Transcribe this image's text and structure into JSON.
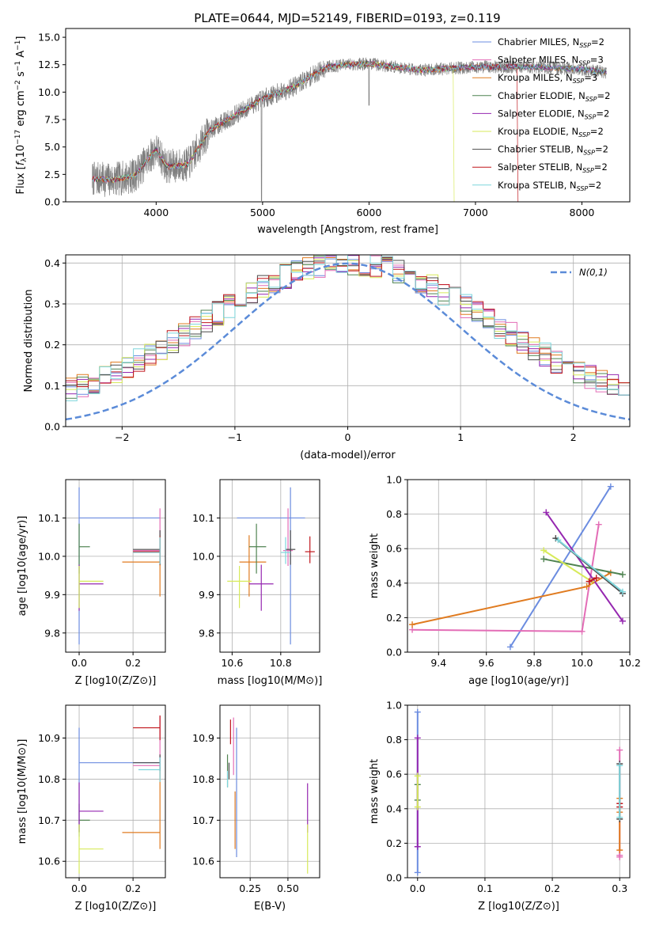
{
  "figure": {
    "title": "PLATE=0644, MJD=52149, FIBERID=0193, z=0.119"
  },
  "models": [
    {
      "name": "Chabrier MILES",
      "nssp": "2",
      "color": "#6b8ce0"
    },
    {
      "name": "Salpeter MILES",
      "nssp": "3",
      "color": "#e36db6"
    },
    {
      "name": "Kroupa MILES",
      "nssp": "3",
      "color": "#e07b20"
    },
    {
      "name": "Chabrier ELODIE",
      "nssp": "2",
      "color": "#4f8350"
    },
    {
      "name": "Salpeter ELODIE",
      "nssp": "2",
      "color": "#9527b0"
    },
    {
      "name": "Kroupa ELODIE",
      "nssp": "2",
      "color": "#d7ea5a"
    },
    {
      "name": "Chabrier STELIB",
      "nssp": "2",
      "color": "#4a4a4a"
    },
    {
      "name": "Salpeter STELIB",
      "nssp": "2",
      "color": "#c0161c"
    },
    {
      "name": "Kroupa STELIB",
      "nssp": "2",
      "color": "#7ed6dc"
    }
  ],
  "chart_data": [
    {
      "id": "spectrum",
      "type": "line",
      "xlabel": "wavelength [Angstrom, rest frame]",
      "ylabel": "Flux [f_λ 10^-17 erg cm^-2 s^-1 A^-1]",
      "xlim": [
        3150,
        8450
      ],
      "ylim": [
        0,
        15.8
      ],
      "xticks": [
        4000,
        5000,
        6000,
        7000,
        8000
      ],
      "yticks": [
        0.0,
        2.5,
        5.0,
        7.5,
        10.0,
        12.5,
        15.0
      ],
      "grid": false,
      "legend_position": "right",
      "data_color": "#808080",
      "data_range": [
        3400,
        8230
      ],
      "continuum_knots": [
        [
          3400,
          2.1
        ],
        [
          3600,
          2.0
        ],
        [
          3800,
          2.4
        ],
        [
          4000,
          4.8
        ],
        [
          4100,
          3.2
        ],
        [
          4300,
          3.4
        ],
        [
          4500,
          6.5
        ],
        [
          5000,
          9.4
        ],
        [
          5300,
          10.5
        ],
        [
          5600,
          12.3
        ],
        [
          5800,
          12.5
        ],
        [
          6000,
          12.6
        ],
        [
          6500,
          12.0
        ],
        [
          7000,
          12.3
        ],
        [
          7500,
          12.3
        ],
        [
          8000,
          12.1
        ],
        [
          8230,
          11.8
        ]
      ],
      "model_dropouts": [
        {
          "model": "Kroupa ELODIE",
          "wavelength": 6800
        },
        {
          "model": "Salpeter STELIB",
          "wavelength": 7400
        }
      ]
    },
    {
      "id": "residuals",
      "type": "histogram",
      "xlabel": "(data-model)/error",
      "ylabel": "Normed distribution",
      "xlim": [
        -2.5,
        2.5
      ],
      "ylim": [
        0,
        0.42
      ],
      "xticks": [
        -2,
        -1,
        0,
        1,
        2
      ],
      "yticks": [
        0.0,
        0.1,
        0.2,
        0.3,
        0.4
      ],
      "grid": true,
      "bin_width": 0.1,
      "reference_curve": {
        "label": "N(0,1)",
        "mean": 0,
        "sigma": 1,
        "color": "#5b8bd8"
      },
      "legend_position": "top-right"
    },
    {
      "id": "age-vs-Z",
      "type": "errorbar",
      "xlabel": "Z [log10(Z/Z⊙)]",
      "ylabel": "age [log10(age/yr)]",
      "xlim": [
        -0.05,
        0.32
      ],
      "ylim": [
        9.75,
        10.2
      ],
      "xticks": [
        0.0,
        0.2
      ],
      "yticks": [
        9.8,
        9.9,
        10.0,
        10.1
      ],
      "grid": true,
      "points": [
        {
          "model": "Chabrier MILES",
          "x": 0.0,
          "y": 10.1,
          "xerr": [
            0.0,
            0.3
          ],
          "yerr": [
            0.33,
            0.08
          ]
        },
        {
          "model": "Salpeter MILES",
          "x": 0.3,
          "y": 10.015,
          "xerr": [
            0.1,
            0.0
          ],
          "yerr": [
            0.04,
            0.11
          ]
        },
        {
          "model": "Kroupa MILES",
          "x": 0.3,
          "y": 9.985,
          "xerr": [
            0.14,
            0.0
          ],
          "yerr": [
            0.09,
            0.07
          ]
        },
        {
          "model": "Chabrier ELODIE",
          "x": 0.0,
          "y": 10.025,
          "xerr": [
            0.0,
            0.04
          ],
          "yerr": [
            0.07,
            0.06
          ]
        },
        {
          "model": "Salpeter ELODIE",
          "x": 0.0,
          "y": 9.928,
          "xerr": [
            0.0,
            0.09
          ],
          "yerr": [
            0.07,
            0.05
          ]
        },
        {
          "model": "Kroupa ELODIE",
          "x": 0.0,
          "y": 9.935,
          "xerr": [
            0.0,
            0.09
          ],
          "yerr": [
            0.07,
            0.04
          ]
        },
        {
          "model": "Chabrier STELIB",
          "x": 0.3,
          "y": 10.018,
          "xerr": [
            0.1,
            0.0
          ],
          "yerr": [
            0.04,
            0.05
          ]
        },
        {
          "model": "Salpeter STELIB",
          "x": 0.3,
          "y": 10.012,
          "xerr": [
            0.1,
            0.0
          ],
          "yerr": [
            0.03,
            0.04
          ]
        },
        {
          "model": "Kroupa STELIB",
          "x": 0.3,
          "y": 10.01,
          "xerr": [
            0.1,
            0.0
          ],
          "yerr": [
            0.03,
            0.04
          ]
        }
      ]
    },
    {
      "id": "age-vs-mass",
      "type": "errorbar",
      "xlabel": "mass [log10(M/M⊙)]",
      "ylabel": "",
      "xlim": [
        10.55,
        10.96
      ],
      "ylim": [
        9.75,
        10.2
      ],
      "xticks": [
        10.6,
        10.8
      ],
      "yticks": [
        9.8,
        9.9,
        10.0,
        10.1
      ],
      "grid": true,
      "points": [
        {
          "model": "Chabrier MILES",
          "x": 10.84,
          "y": 10.1,
          "xerr": [
            0.22,
            0.06
          ],
          "yerr": [
            0.33,
            0.08
          ]
        },
        {
          "model": "Salpeter MILES",
          "x": 10.83,
          "y": 10.015,
          "xerr": [
            0.02,
            0.02
          ],
          "yerr": [
            0.04,
            0.11
          ]
        },
        {
          "model": "Kroupa MILES",
          "x": 10.67,
          "y": 9.985,
          "xerr": [
            0.04,
            0.07
          ],
          "yerr": [
            0.09,
            0.07
          ]
        },
        {
          "model": "Chabrier ELODIE",
          "x": 10.7,
          "y": 10.025,
          "xerr": [
            0.03,
            0.04
          ],
          "yerr": [
            0.07,
            0.06
          ]
        },
        {
          "model": "Salpeter ELODIE",
          "x": 10.72,
          "y": 9.928,
          "xerr": [
            0.05,
            0.05
          ],
          "yerr": [
            0.07,
            0.05
          ]
        },
        {
          "model": "Kroupa ELODIE",
          "x": 10.63,
          "y": 9.935,
          "xerr": [
            0.05,
            0.05
          ],
          "yerr": [
            0.07,
            0.04
          ]
        },
        {
          "model": "Chabrier STELIB",
          "x": 10.84,
          "y": 10.018,
          "xerr": [
            0.02,
            0.02
          ],
          "yerr": [
            0.04,
            0.05
          ]
        },
        {
          "model": "Salpeter STELIB",
          "x": 10.92,
          "y": 10.012,
          "xerr": [
            0.02,
            0.02
          ],
          "yerr": [
            0.03,
            0.04
          ]
        },
        {
          "model": "Kroupa STELIB",
          "x": 10.82,
          "y": 10.01,
          "xerr": [
            0.02,
            0.02
          ],
          "yerr": [
            0.03,
            0.04
          ]
        }
      ]
    },
    {
      "id": "weight-vs-age",
      "type": "line",
      "xlabel": "age [log10(age/yr)]",
      "ylabel": "mass weight",
      "xlim": [
        9.27,
        10.2
      ],
      "ylim": [
        0,
        1
      ],
      "xticks": [
        9.4,
        9.6,
        9.8,
        10.0,
        10.2
      ],
      "yticks": [
        0.0,
        0.2,
        0.4,
        0.6,
        0.8,
        1.0
      ],
      "grid": true,
      "series": [
        {
          "model": "Chabrier MILES",
          "x": [
            9.7,
            10.12
          ],
          "y": [
            0.03,
            0.96
          ]
        },
        {
          "model": "Salpeter MILES",
          "x": [
            9.29,
            10.0,
            10.07
          ],
          "y": [
            0.13,
            0.12,
            0.74
          ]
        },
        {
          "model": "Kroupa MILES",
          "x": [
            9.29,
            10.02,
            10.12
          ],
          "y": [
            0.16,
            0.38,
            0.46
          ]
        },
        {
          "model": "Chabrier ELODIE",
          "x": [
            9.84,
            10.17
          ],
          "y": [
            0.54,
            0.45
          ]
        },
        {
          "model": "Salpeter ELODIE",
          "x": [
            9.85,
            10.17
          ],
          "y": [
            0.81,
            0.18
          ]
        },
        {
          "model": "Kroupa ELODIE",
          "x": [
            9.84,
            10.04
          ],
          "y": [
            0.59,
            0.41
          ]
        },
        {
          "model": "Chabrier STELIB",
          "x": [
            9.89,
            10.17
          ],
          "y": [
            0.66,
            0.34
          ]
        },
        {
          "model": "Salpeter STELIB",
          "x": [
            10.03,
            10.06
          ],
          "y": [
            0.41,
            0.43
          ]
        },
        {
          "model": "Kroupa STELIB",
          "x": [
            9.9,
            10.17
          ],
          "y": [
            0.65,
            0.35
          ]
        }
      ]
    },
    {
      "id": "mass-vs-Z",
      "type": "errorbar",
      "xlabel": "Z [log10(Z/Z⊙)]",
      "ylabel": "mass [log10(M/M⊙)]",
      "xlim": [
        -0.05,
        0.32
      ],
      "ylim": [
        10.56,
        10.98
      ],
      "xticks": [
        0.0,
        0.2
      ],
      "yticks": [
        10.6,
        10.7,
        10.8,
        10.9
      ],
      "grid": true,
      "points": [
        {
          "model": "Chabrier MILES",
          "x": 0.0,
          "y": 10.84,
          "xerr": [
            0.0,
            0.3
          ],
          "yerr": [
            0.18,
            0.085
          ]
        },
        {
          "model": "Salpeter MILES",
          "x": 0.3,
          "y": 10.833,
          "xerr": [
            0.1,
            0.0
          ],
          "yerr": [
            0.03,
            0.12
          ]
        },
        {
          "model": "Kroupa MILES",
          "x": 0.3,
          "y": 10.67,
          "xerr": [
            0.14,
            0.0
          ],
          "yerr": [
            0.04,
            0.16
          ]
        },
        {
          "model": "Chabrier ELODIE",
          "x": 0.0,
          "y": 10.7,
          "xerr": [
            0.0,
            0.04
          ],
          "yerr": [
            0.03,
            0.04
          ]
        },
        {
          "model": "Salpeter ELODIE",
          "x": 0.0,
          "y": 10.722,
          "xerr": [
            0.0,
            0.09
          ],
          "yerr": [
            0.05,
            0.07
          ]
        },
        {
          "model": "Kroupa ELODIE",
          "x": 0.0,
          "y": 10.63,
          "xerr": [
            0.0,
            0.09
          ],
          "yerr": [
            0.06,
            0.06
          ]
        },
        {
          "model": "Chabrier STELIB",
          "x": 0.3,
          "y": 10.84,
          "xerr": [
            0.1,
            0.0
          ],
          "yerr": [
            0.02,
            0.02
          ]
        },
        {
          "model": "Salpeter STELIB",
          "x": 0.3,
          "y": 10.925,
          "xerr": [
            0.1,
            0.0
          ],
          "yerr": [
            0.03,
            0.03
          ]
        },
        {
          "model": "Kroupa STELIB",
          "x": 0.3,
          "y": 10.823,
          "xerr": [
            0.08,
            0.0
          ],
          "yerr": [
            0.03,
            0.03
          ]
        }
      ]
    },
    {
      "id": "mass-vs-EBV",
      "type": "errorbar",
      "xlabel": "E(B-V)",
      "ylabel": "",
      "xlim": [
        0.05,
        0.71
      ],
      "ylim": [
        10.56,
        10.98
      ],
      "xticks": [
        0.25,
        0.5
      ],
      "yticks": [
        10.6,
        10.7,
        10.8,
        10.9
      ],
      "grid": true,
      "points": [
        {
          "model": "Chabrier MILES",
          "x": 0.16,
          "y": 10.77,
          "xerr": [
            0,
            0
          ],
          "yerr": [
            0.16,
            0.155
          ]
        },
        {
          "model": "Salpeter MILES",
          "x": 0.14,
          "y": 10.88,
          "xerr": [
            0,
            0
          ],
          "yerr": [
            0.07,
            0.07
          ]
        },
        {
          "model": "Kroupa MILES",
          "x": 0.15,
          "y": 10.7,
          "xerr": [
            0,
            0
          ],
          "yerr": [
            0.07,
            0.07
          ]
        },
        {
          "model": "Chabrier ELODIE",
          "x": 0.1,
          "y": 10.82,
          "xerr": [
            0,
            0
          ],
          "yerr": [
            0.04,
            0.04
          ]
        },
        {
          "model": "Salpeter ELODIE",
          "x": 0.63,
          "y": 10.73,
          "xerr": [
            0,
            0
          ],
          "yerr": [
            0.06,
            0.06
          ]
        },
        {
          "model": "Kroupa ELODIE",
          "x": 0.63,
          "y": 10.63,
          "xerr": [
            0,
            0
          ],
          "yerr": [
            0.06,
            0.06
          ]
        },
        {
          "model": "Chabrier STELIB",
          "x": 0.11,
          "y": 10.82,
          "xerr": [
            0,
            0
          ],
          "yerr": [
            0.02,
            0.02
          ]
        },
        {
          "model": "Salpeter STELIB",
          "x": 0.12,
          "y": 10.915,
          "xerr": [
            0,
            0
          ],
          "yerr": [
            0.03,
            0.03
          ]
        },
        {
          "model": "Kroupa STELIB",
          "x": 0.1,
          "y": 10.8,
          "xerr": [
            0,
            0
          ],
          "yerr": [
            0.02,
            0.02
          ]
        }
      ]
    },
    {
      "id": "weight-vs-Z",
      "type": "scatter",
      "xlabel": "Z [log10(Z/Z⊙)]",
      "ylabel": "mass weight",
      "xlim": [
        -0.015,
        0.315
      ],
      "ylim": [
        0,
        1
      ],
      "xticks": [
        0.0,
        0.1,
        0.2,
        0.3
      ],
      "yticks": [
        0.0,
        0.2,
        0.4,
        0.6,
        0.8,
        1.0
      ],
      "grid": true,
      "series": [
        {
          "model": "Chabrier MILES",
          "x": [
            0.0,
            0.0
          ],
          "y": [
            0.03,
            0.96
          ]
        },
        {
          "model": "Salpeter MILES",
          "x": [
            0.3,
            0.3,
            0.3
          ],
          "y": [
            0.13,
            0.12,
            0.74
          ]
        },
        {
          "model": "Kroupa MILES",
          "x": [
            0.3,
            0.3,
            0.3
          ],
          "y": [
            0.16,
            0.38,
            0.46
          ]
        },
        {
          "model": "Chabrier ELODIE",
          "x": [
            0.0,
            0.0
          ],
          "y": [
            0.54,
            0.45
          ]
        },
        {
          "model": "Salpeter ELODIE",
          "x": [
            0.0,
            0.0
          ],
          "y": [
            0.81,
            0.18
          ]
        },
        {
          "model": "Kroupa ELODIE",
          "x": [
            0.0,
            0.0
          ],
          "y": [
            0.59,
            0.41
          ]
        },
        {
          "model": "Chabrier STELIB",
          "x": [
            0.3,
            0.3
          ],
          "y": [
            0.66,
            0.34
          ]
        },
        {
          "model": "Salpeter STELIB",
          "x": [
            0.3,
            0.3
          ],
          "y": [
            0.41,
            0.43
          ]
        },
        {
          "model": "Kroupa STELIB",
          "x": [
            0.3,
            0.3
          ],
          "y": [
            0.65,
            0.35
          ]
        }
      ]
    }
  ]
}
